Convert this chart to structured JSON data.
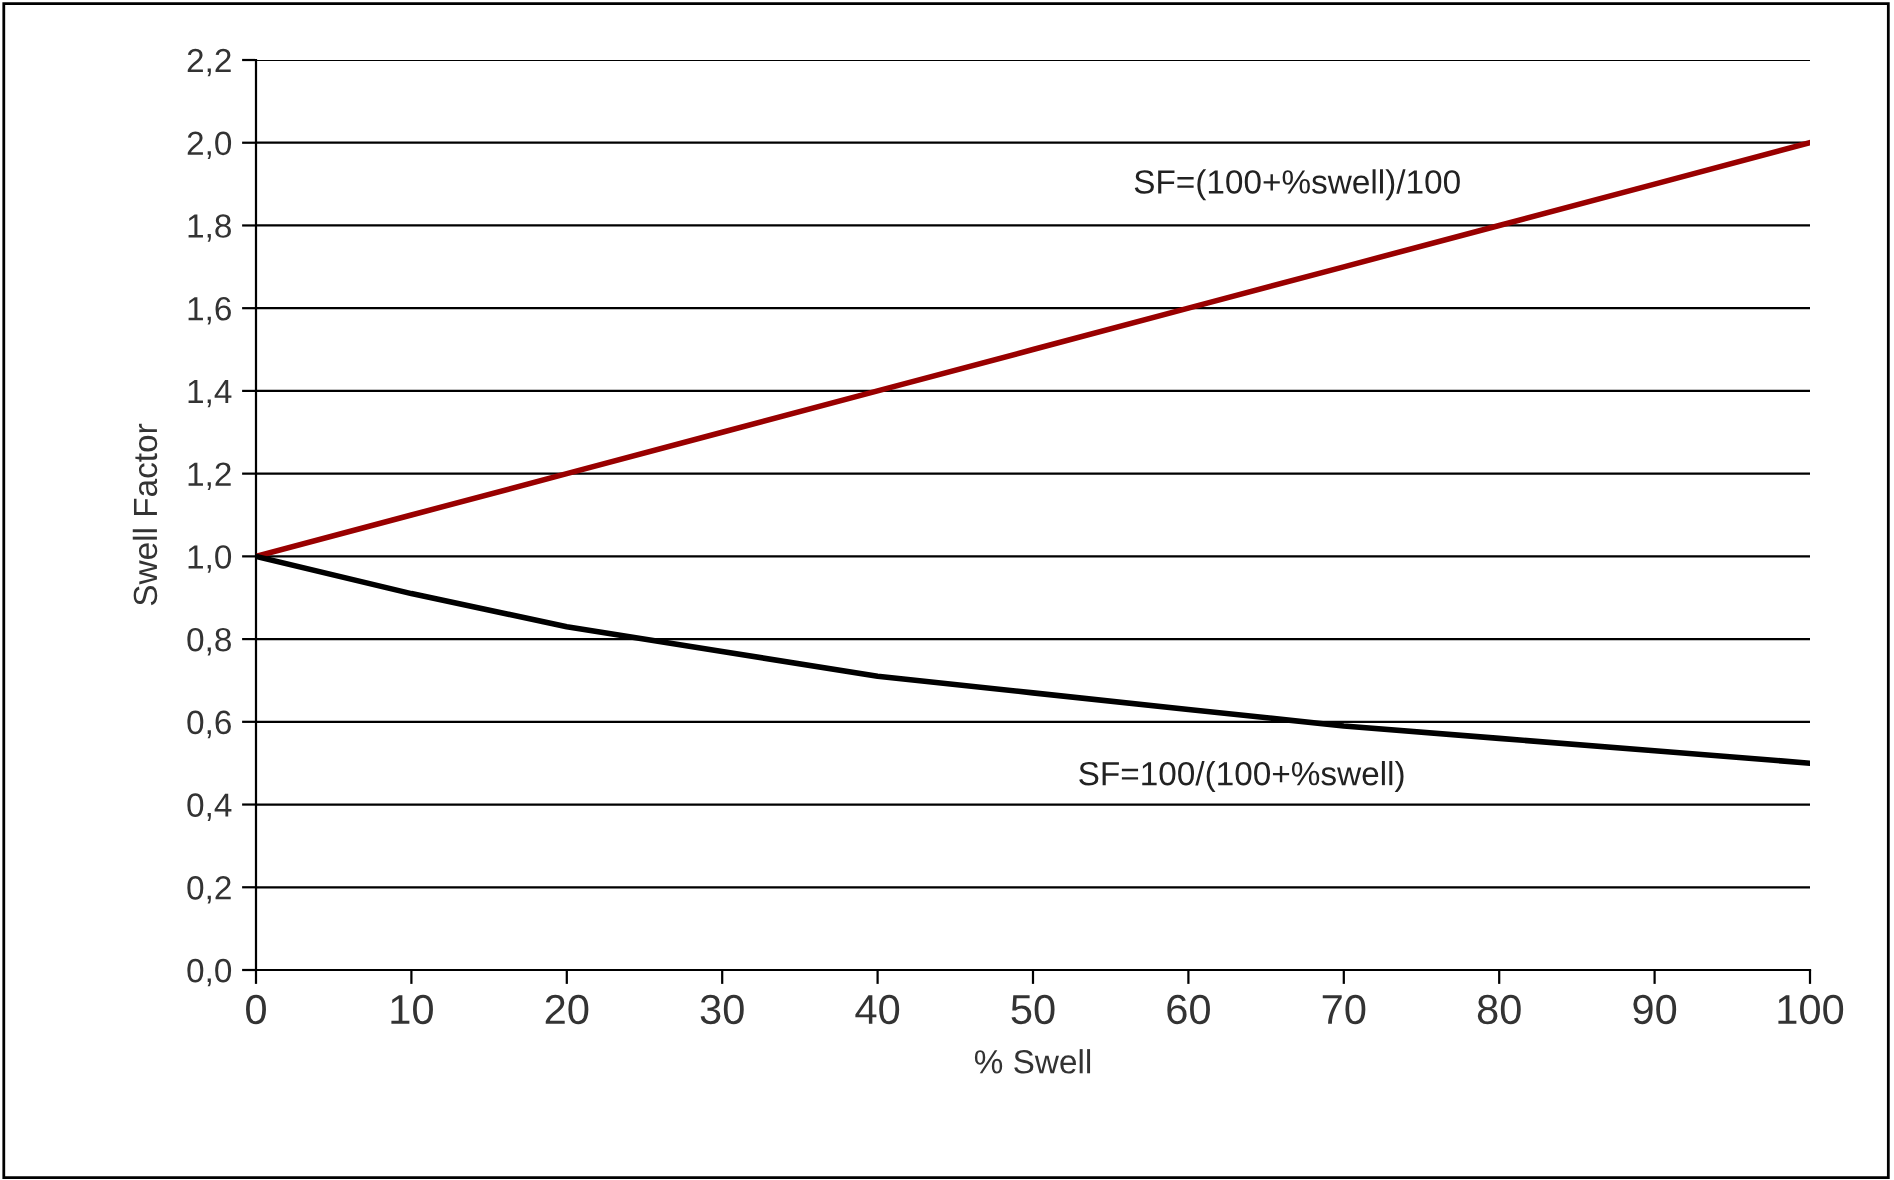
{
  "chart_data": {
    "type": "line",
    "xlabel": "% Swell",
    "ylabel": "Swell Factor",
    "x": [
      0,
      10,
      20,
      30,
      40,
      50,
      60,
      70,
      80,
      90,
      100
    ],
    "series": [
      {
        "name": "SF=(100+%swell)/100",
        "color": "#990000",
        "values": [
          1.0,
          1.1,
          1.2,
          1.3,
          1.4,
          1.5,
          1.6,
          1.7,
          1.8,
          1.9,
          2.0
        ]
      },
      {
        "name": "SF=100/(100+%swell)",
        "color": "#000000",
        "values": [
          1.0,
          0.91,
          0.83,
          0.77,
          0.71,
          0.67,
          0.63,
          0.59,
          0.56,
          0.53,
          0.5
        ]
      }
    ],
    "xlim": [
      0,
      100
    ],
    "xticks": [
      0,
      10,
      20,
      30,
      40,
      50,
      60,
      70,
      80,
      90,
      100
    ],
    "ylim": [
      0,
      2.2
    ],
    "yticks": [
      {
        "value": 0,
        "label": "0,0"
      },
      {
        "value": 0.2,
        "label": "0,2"
      },
      {
        "value": 0.4,
        "label": "0,4"
      },
      {
        "value": 0.6,
        "label": "0,6"
      },
      {
        "value": 0.8,
        "label": "0,8"
      },
      {
        "value": 1.0,
        "label": "1,0"
      },
      {
        "value": 1.2,
        "label": "1,2"
      },
      {
        "value": 1.4,
        "label": "1,4"
      },
      {
        "value": 1.6,
        "label": "1,6"
      },
      {
        "value": 1.8,
        "label": "1,8"
      },
      {
        "value": 2.0,
        "label": "2,0"
      },
      {
        "value": 2.2,
        "label": "2,2"
      }
    ],
    "grid": "y",
    "marker": "none",
    "line_style": "solid"
  }
}
